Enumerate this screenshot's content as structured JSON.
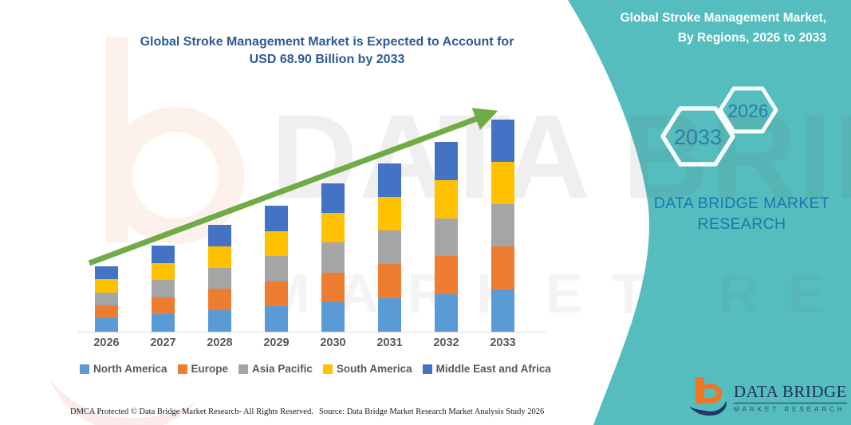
{
  "header": {
    "title_line1": "Global Stroke Management Market is Expected to Account for",
    "title_line2": "USD 68.90 Billion by 2033"
  },
  "right_panel": {
    "title_line1": "Global Stroke Management Market,",
    "title_line2": "By Regions, 2026 to 2033",
    "hexagon_back_label": "2033",
    "hexagon_front_label": "2026",
    "brand_line1": "DATA BRIDGE MARKET",
    "brand_line2": "RESEARCH"
  },
  "chart_data": {
    "type": "bar",
    "stacked": true,
    "title": "Global Stroke Management Market is Expected to Account for USD 68.90 Billion by 2033",
    "unit": "USD billion (values estimated from bar heights; only the 68.90 total for 2033 is labeled)",
    "categories": [
      "2026",
      "2027",
      "2028",
      "2029",
      "2030",
      "2031",
      "2032",
      "2033"
    ],
    "series": [
      {
        "name": "North America",
        "color": "#5B9BD5",
        "values": [
          4.3,
          5.6,
          7.0,
          8.2,
          9.7,
          11.0,
          12.3,
          13.8
        ]
      },
      {
        "name": "Europe",
        "color": "#ED7D31",
        "values": [
          4.2,
          5.6,
          6.9,
          8.2,
          9.6,
          10.9,
          12.3,
          13.8
        ]
      },
      {
        "name": "Asia Pacific",
        "color": "#A5A5A5",
        "values": [
          4.2,
          5.6,
          6.9,
          8.1,
          9.6,
          10.9,
          12.3,
          13.8
        ]
      },
      {
        "name": "South America",
        "color": "#FFC000",
        "values": [
          4.3,
          5.6,
          7.0,
          8.2,
          9.7,
          11.0,
          12.4,
          13.8
        ]
      },
      {
        "name": "Middle East and Africa",
        "color": "#4472C4",
        "values": [
          4.2,
          5.6,
          6.9,
          8.2,
          9.6,
          10.9,
          12.3,
          13.7
        ]
      }
    ],
    "totals_estimated": [
      21.2,
      28.0,
      34.7,
      40.9,
      48.2,
      54.7,
      61.6,
      68.9
    ],
    "xlabel": "",
    "ylabel": "",
    "y_axis_shown": false,
    "gridlines": false,
    "legend_position": "bottom",
    "trend_arrow": true
  },
  "footer": {
    "dmca": "DMCA Protected © Data Bridge Market Research-  All Rights Reserved.",
    "source": "Source: Data Bridge Market Research  Market Analysis Study 2026"
  },
  "logo": {
    "title": "DATA BRIDGE",
    "subtitle": "MARKET RESEARCH"
  },
  "watermark": {
    "line1": "DATA BRIDGE",
    "line2": "MARKET RESEARCH"
  },
  "colors": {
    "teal_panel": "#55BDBE",
    "arrow_green": "#6FAC46",
    "title_blue": "#2F5A93",
    "axis_label_gray": "#595959",
    "hexagon_text": "#2B7FA6",
    "panel_brand_blue": "#1C76AE",
    "logo_navy": "#1F3864",
    "logo_orange": "#EE7623",
    "axis_line_gray": "#D9D9D9"
  }
}
